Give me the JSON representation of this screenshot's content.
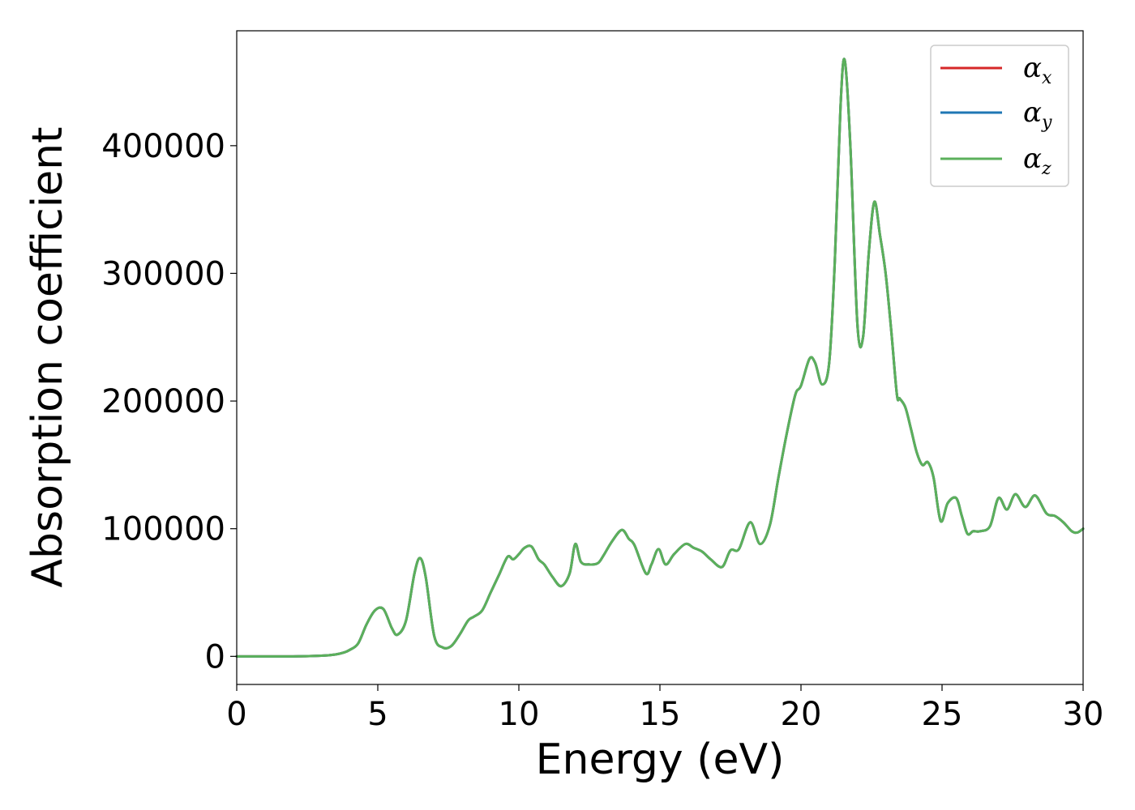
{
  "chart_data": {
    "type": "line",
    "title": "",
    "xlabel": "Energy (eV)",
    "ylabel": "Absorption coefficient",
    "xlim": [
      0,
      30
    ],
    "ylim": [
      -22000,
      490000
    ],
    "grid": false,
    "legend_position": "top-right",
    "x_ticks": [
      0,
      5,
      10,
      15,
      20,
      25,
      30
    ],
    "x_tick_labels": [
      "0",
      "5",
      "10",
      "15",
      "20",
      "25",
      "30"
    ],
    "y_ticks": [
      0,
      100000,
      200000,
      300000,
      400000
    ],
    "y_tick_labels": [
      "0",
      "100000",
      "200000",
      "300000",
      "400000"
    ],
    "x": [
      0,
      1,
      2,
      3,
      3.5,
      3.8,
      4.0,
      4.3,
      4.6,
      4.9,
      5.2,
      5.5,
      5.7,
      6.0,
      6.3,
      6.5,
      6.7,
      7.0,
      7.3,
      7.6,
      7.9,
      8.2,
      8.4,
      8.7,
      9.0,
      9.3,
      9.6,
      9.8,
      10.0,
      10.2,
      10.45,
      10.7,
      10.9,
      11.2,
      11.5,
      11.8,
      12.0,
      12.2,
      12.5,
      12.8,
      13.0,
      13.3,
      13.65,
      13.9,
      14.1,
      14.5,
      14.7,
      14.95,
      15.2,
      15.5,
      15.9,
      16.2,
      16.5,
      16.8,
      17.2,
      17.5,
      17.8,
      18.2,
      18.55,
      18.9,
      19.2,
      19.5,
      19.8,
      20.0,
      20.3,
      20.5,
      20.75,
      21.0,
      21.2,
      21.4,
      21.55,
      21.75,
      22.0,
      22.2,
      22.4,
      22.6,
      22.8,
      23.0,
      23.2,
      23.4,
      23.5,
      23.7,
      23.9,
      24.1,
      24.3,
      24.5,
      24.7,
      24.95,
      25.2,
      25.5,
      25.7,
      25.9,
      26.1,
      26.35,
      26.7,
      27.0,
      27.3,
      27.6,
      27.95,
      28.3,
      28.7,
      29.0,
      29.3,
      29.6,
      29.8,
      30.0
    ],
    "series": [
      {
        "name": "αx",
        "color": "#d62728",
        "values": [
          0,
          0,
          0,
          500,
          1500,
          3000,
          5000,
          10000,
          25000,
          36000,
          37000,
          22000,
          17000,
          28000,
          65000,
          77000,
          62000,
          16000,
          7000,
          8000,
          17000,
          28000,
          31000,
          36000,
          50000,
          64000,
          78000,
          76000,
          80000,
          85000,
          86000,
          76000,
          72000,
          62000,
          55000,
          65000,
          88000,
          74000,
          72000,
          73000,
          79000,
          90000,
          99000,
          92000,
          87000,
          65000,
          72000,
          84000,
          72000,
          80000,
          88000,
          85000,
          82000,
          76000,
          70000,
          83000,
          84000,
          105000,
          88000,
          103000,
          140000,
          175000,
          205000,
          212000,
          233000,
          230000,
          213000,
          230000,
          310000,
          430000,
          467000,
          400000,
          260000,
          250000,
          315000,
          356000,
          330000,
          300000,
          255000,
          205000,
          202000,
          195000,
          178000,
          160000,
          150000,
          152000,
          140000,
          106000,
          120000,
          124000,
          110000,
          96000,
          98000,
          98000,
          102000,
          124000,
          115000,
          127000,
          117000,
          126000,
          112000,
          110000,
          105000,
          98000,
          97000,
          100000
        ]
      },
      {
        "name": "αy",
        "color": "#1f77b4",
        "values": [
          0,
          0,
          0,
          500,
          1500,
          3000,
          5000,
          10000,
          25000,
          36000,
          37000,
          22000,
          17000,
          28000,
          65000,
          77000,
          62000,
          16000,
          7000,
          8000,
          17000,
          28000,
          31000,
          36000,
          50000,
          64000,
          78000,
          76000,
          80000,
          85000,
          86000,
          76000,
          72000,
          62000,
          55000,
          65000,
          88000,
          74000,
          72000,
          73000,
          79000,
          90000,
          99000,
          92000,
          87000,
          65000,
          72000,
          84000,
          72000,
          80000,
          88000,
          85000,
          82000,
          76000,
          70000,
          83000,
          84000,
          105000,
          88000,
          103000,
          140000,
          175000,
          205000,
          212000,
          233000,
          230000,
          213000,
          230000,
          310000,
          430000,
          467000,
          400000,
          260000,
          250000,
          315000,
          356000,
          330000,
          300000,
          255000,
          205000,
          202000,
          195000,
          178000,
          160000,
          150000,
          152000,
          140000,
          106000,
          120000,
          124000,
          110000,
          96000,
          98000,
          98000,
          102000,
          124000,
          115000,
          127000,
          117000,
          126000,
          112000,
          110000,
          105000,
          98000,
          97000,
          100000
        ]
      },
      {
        "name": "αz",
        "color": "#5bb05b",
        "values": [
          0,
          0,
          0,
          500,
          1500,
          3000,
          5000,
          10000,
          25000,
          36000,
          37000,
          22000,
          17000,
          28000,
          65000,
          77000,
          62000,
          16000,
          7000,
          8000,
          17000,
          28000,
          31000,
          36000,
          50000,
          64000,
          78000,
          76000,
          80000,
          85000,
          86000,
          76000,
          72000,
          62000,
          55000,
          65000,
          88000,
          74000,
          72000,
          73000,
          79000,
          90000,
          99000,
          92000,
          87000,
          65000,
          72000,
          84000,
          72000,
          80000,
          88000,
          85000,
          82000,
          76000,
          70000,
          83000,
          84000,
          105000,
          88000,
          103000,
          140000,
          175000,
          205000,
          212000,
          233000,
          230000,
          213000,
          230000,
          310000,
          430000,
          467000,
          400000,
          260000,
          250000,
          315000,
          356000,
          330000,
          300000,
          255000,
          205000,
          202000,
          195000,
          178000,
          160000,
          150000,
          152000,
          140000,
          106000,
          120000,
          124000,
          110000,
          96000,
          98000,
          98000,
          102000,
          124000,
          115000,
          127000,
          117000,
          126000,
          112000,
          110000,
          105000,
          98000,
          97000,
          100000
        ]
      }
    ],
    "legend": [
      {
        "symbol": "α",
        "subscript": "x",
        "color": "#d62728"
      },
      {
        "symbol": "α",
        "subscript": "y",
        "color": "#1f77b4"
      },
      {
        "symbol": "α",
        "subscript": "z",
        "color": "#5bb05b"
      }
    ]
  }
}
